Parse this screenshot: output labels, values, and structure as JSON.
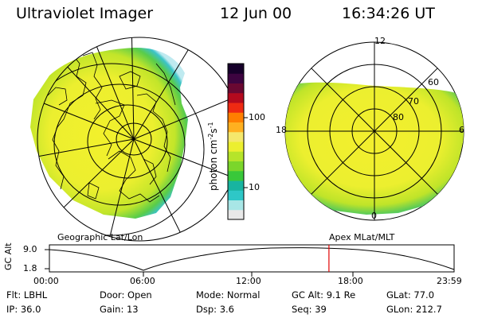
{
  "header": {
    "instrument": "Ultraviolet Imager",
    "date": "12 Jun 00",
    "time": "16:34:26 UT"
  },
  "left_panel": {
    "label": "Geographic Lat/Lon"
  },
  "right_panel": {
    "label": "Apex MLat/MLT",
    "mlt_labels": [
      "12",
      "18",
      "6",
      "0"
    ],
    "lat_labels": [
      "60",
      "70",
      "80"
    ]
  },
  "colorbar": {
    "label": "photon cm",
    "label_sup1": "-2",
    "label_mid": "s",
    "label_sup2": "-1",
    "ticks": [
      "100",
      "10"
    ],
    "colors": [
      "#e8e8e8",
      "#a8e6e6",
      "#2ec7c7",
      "#18b4a0",
      "#39c83a",
      "#7bd62b",
      "#b6e42a",
      "#ecef2f",
      "#f5e86c",
      "#ffb020",
      "#ff7f00",
      "#ee2a12",
      "#b40a1e",
      "#6a0832",
      "#3d0440",
      "#16002a"
    ]
  },
  "altitude_plot": {
    "y_label": "GC Alt",
    "y_ticks": [
      "9.0",
      "1.8"
    ],
    "x_ticks": [
      "00:00",
      "06:00",
      "12:00",
      "18:00",
      "23:59"
    ],
    "marker_time": "16:34",
    "marker_color": "#e00000"
  },
  "footer": {
    "rows": [
      [
        {
          "label": "Flt:",
          "value": "LBHL"
        },
        {
          "label": "Door:",
          "value": "Open"
        },
        {
          "label": "Mode:",
          "value": "Normal"
        },
        {
          "label": "GC Alt:",
          "value": "9.1 Re"
        },
        {
          "label": "GLat:",
          "value": "77.0"
        }
      ],
      [
        {
          "label": "IP:",
          "value": "36.0"
        },
        {
          "label": "Gain:",
          "value": "13"
        },
        {
          "label": "Dsp:",
          "value": "3.6"
        },
        {
          "label": "Seq:",
          "value": "39"
        },
        {
          "label": "GLon:",
          "value": "212.7"
        }
      ]
    ]
  }
}
